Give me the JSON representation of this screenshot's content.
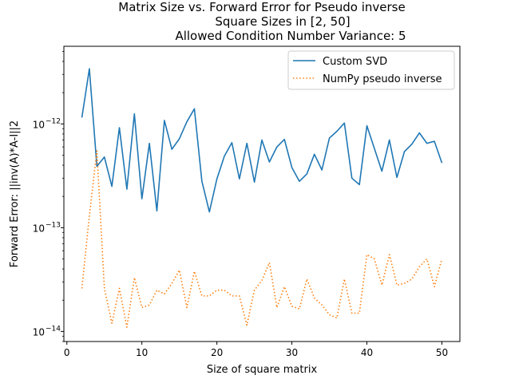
{
  "chart_data": {
    "type": "line",
    "title_lines": [
      "Matrix Size vs. Forward Error for Pseudo inverse",
      "Square Sizes in [2, 50]",
      "Allowed Condition Number Variance: 5"
    ],
    "xlabel": "Size of square matrix",
    "ylabel": "Forward Error: ||inv(A)*A-I||2",
    "xlim": [
      -0.4,
      52.4
    ],
    "ylim": [
      8e-15,
      5.6e-12
    ],
    "yscale": "log",
    "x_ticks": [
      0,
      10,
      20,
      30,
      40,
      50
    ],
    "x_tick_labels": [
      "0",
      "10",
      "20",
      "30",
      "40",
      "50"
    ],
    "y_ticks": [
      1e-14,
      1e-13,
      1e-12
    ],
    "y_tick_labels": [
      "10",
      "10",
      "10"
    ],
    "y_tick_exponents": [
      "−14",
      "−13",
      "−12"
    ],
    "legend_position": "top-right",
    "x": [
      2,
      3,
      4,
      5,
      6,
      7,
      8,
      9,
      10,
      11,
      12,
      13,
      14,
      15,
      16,
      17,
      18,
      19,
      20,
      21,
      22,
      23,
      24,
      25,
      26,
      27,
      28,
      29,
      30,
      31,
      32,
      33,
      34,
      35,
      36,
      37,
      38,
      39,
      40,
      41,
      42,
      43,
      44,
      45,
      46,
      47,
      48,
      49,
      50
    ],
    "series": [
      {
        "name": "Custom SVD",
        "color": "#1f77b4",
        "style": "solid",
        "values": [
          1.15e-12,
          3.4e-12,
          3.9e-13,
          4.8e-13,
          2.5e-13,
          9.2e-13,
          2.35e-13,
          1.25e-12,
          1.9e-13,
          6.5e-13,
          1.45e-13,
          1.08e-12,
          5.7e-13,
          7.2e-13,
          1.05e-12,
          1.4e-12,
          2.8e-13,
          1.42e-13,
          2.95e-13,
          4.9e-13,
          6.6e-13,
          2.95e-13,
          6.5e-13,
          2.75e-13,
          7e-13,
          4.3e-13,
          6e-13,
          7.1e-13,
          3.8e-13,
          2.8e-13,
          3.3e-13,
          5.1e-13,
          3.6e-13,
          7.3e-13,
          8.5e-13,
          1.02e-12,
          3e-13,
          2.6e-13,
          9.6e-13,
          5.8e-13,
          3.5e-13,
          7e-13,
          3.05e-13,
          5.4e-13,
          6.4e-13,
          8.2e-13,
          6.5e-13,
          6.8e-13,
          4.2e-13
        ]
      },
      {
        "name": "NumPy pseudo inverse",
        "color": "#ff7f0e",
        "style": "dotted",
        "values": [
          2.6e-14,
          1.3e-13,
          5.5e-13,
          2.6e-14,
          1.2e-14,
          2.6e-14,
          1.1e-14,
          3.3e-14,
          1.7e-14,
          1.8e-14,
          2.5e-14,
          2.3e-14,
          2.9e-14,
          3.9e-14,
          1.7e-14,
          3.8e-14,
          2.2e-14,
          2.2e-14,
          2.5e-14,
          2.5e-14,
          2.2e-14,
          2.2e-14,
          1.15e-14,
          2.5e-14,
          3.1e-14,
          4.6e-14,
          1.7e-14,
          2.7e-14,
          1.75e-14,
          1.65e-14,
          3.2e-14,
          2.1e-14,
          1.8e-14,
          1.45e-14,
          1.35e-14,
          3.2e-14,
          1.5e-14,
          1.5e-14,
          5.5e-14,
          5e-14,
          2.8e-14,
          5.5e-14,
          2.8e-14,
          2.9e-14,
          3.2e-14,
          4.2e-14,
          5e-14,
          2.7e-14,
          5e-14
        ]
      }
    ]
  }
}
